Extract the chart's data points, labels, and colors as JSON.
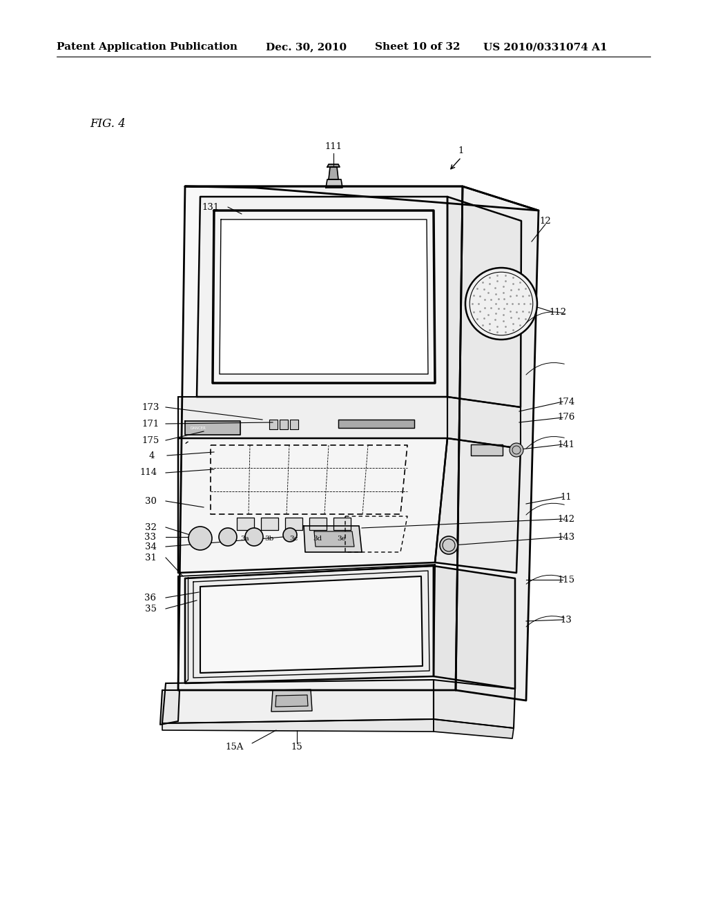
{
  "bg_color": "#ffffff",
  "lc": "#000000",
  "header_text": "Patent Application Publication",
  "header_date": "Dec. 30, 2010",
  "header_sheet": "Sheet 10 of 32",
  "header_patent": "US 2010/0331074 A1",
  "fig_label": "FIG. 4"
}
